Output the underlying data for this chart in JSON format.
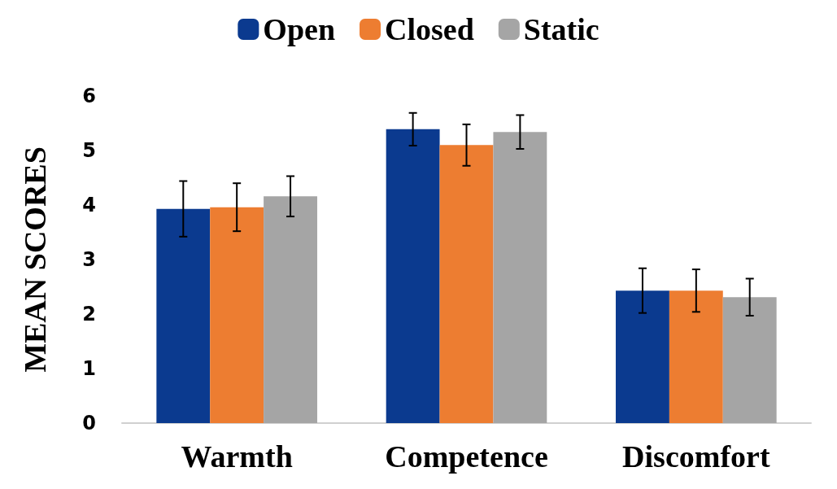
{
  "chart_data": {
    "type": "bar",
    "ylabel": "MEAN SCORES",
    "categories": [
      "Warmth",
      "Competence",
      "Discomfort"
    ],
    "series": [
      {
        "name": "Open",
        "color": "#0b3a8f",
        "values": [
          3.93,
          5.39,
          2.43
        ],
        "errors": [
          0.51,
          0.3,
          0.41
        ]
      },
      {
        "name": "Closed",
        "color": "#ed7d31",
        "values": [
          3.96,
          5.1,
          2.43
        ],
        "errors": [
          0.44,
          0.38,
          0.39
        ]
      },
      {
        "name": "Static",
        "color": "#a5a5a5",
        "values": [
          4.16,
          5.34,
          2.31
        ],
        "errors": [
          0.37,
          0.31,
          0.34
        ]
      }
    ],
    "ylim": [
      0,
      6
    ],
    "yticks": [
      0,
      1,
      2,
      3,
      4,
      5,
      6
    ],
    "grid": false,
    "legend": "top"
  }
}
